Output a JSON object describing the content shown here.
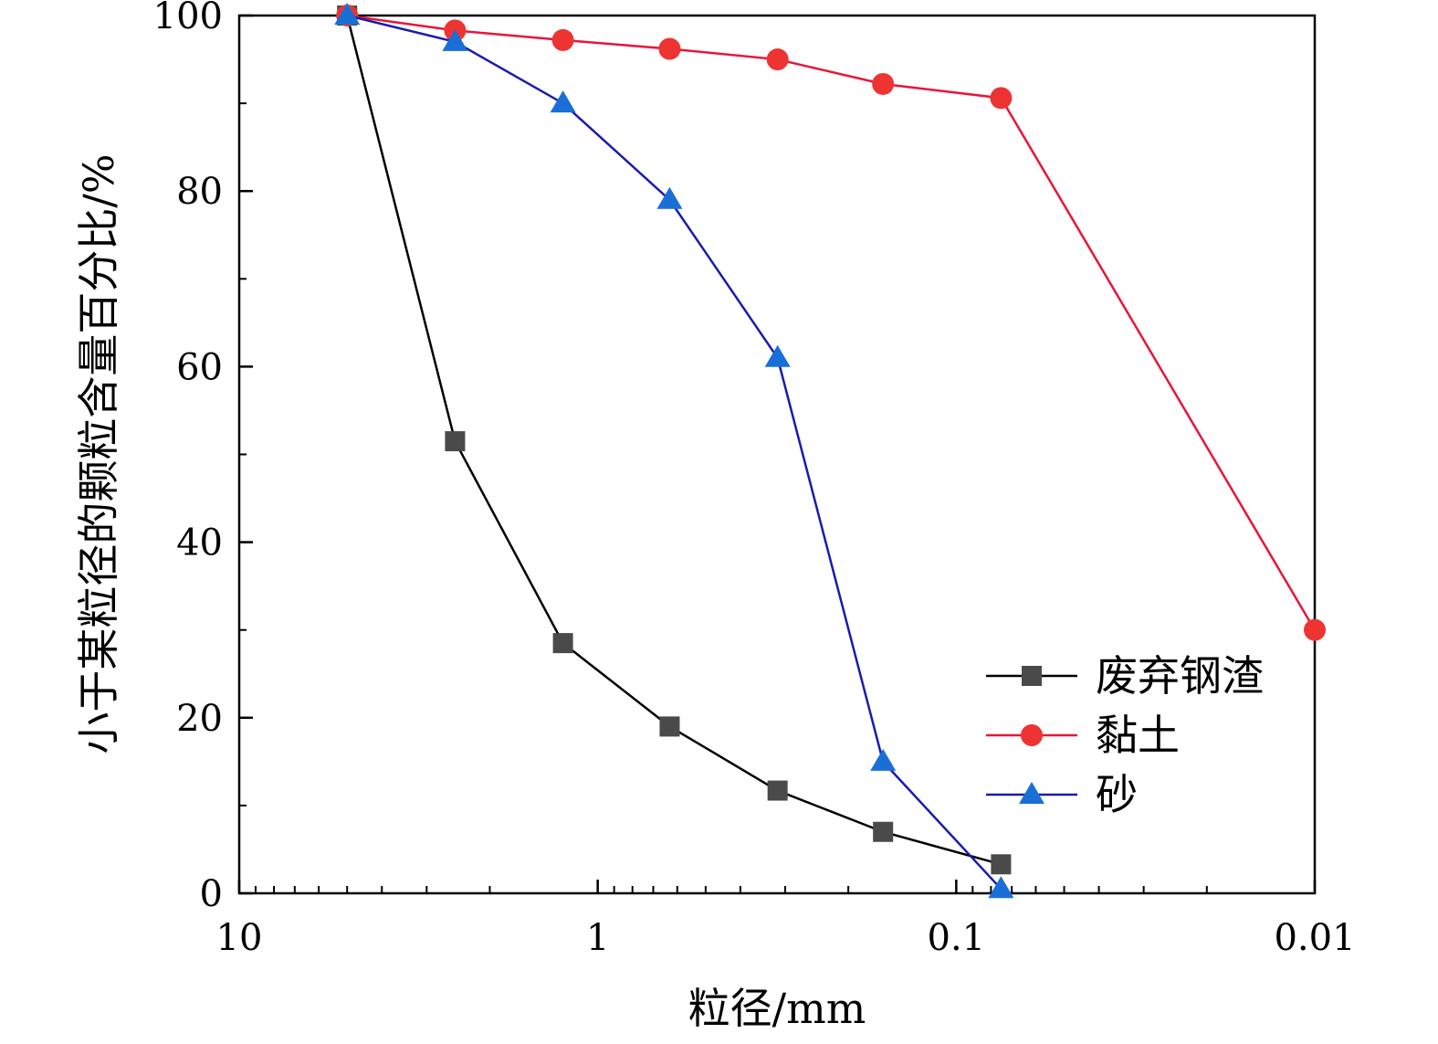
{
  "chart_data": {
    "type": "line",
    "x_scale": "log",
    "x_reversed": true,
    "xlabel": "粒径/mm",
    "ylabel": "小于某粒径的颗粒含量百分比/%",
    "xlim": [
      10,
      0.01
    ],
    "ylim": [
      0,
      100
    ],
    "x_ticks": [
      10,
      1,
      0.1,
      0.01
    ],
    "x_tick_labels": [
      "10",
      "1",
      "0.1",
      "0.01"
    ],
    "y_ticks": [
      0,
      20,
      40,
      60,
      80,
      100
    ],
    "y_tick_labels": [
      "0",
      "20",
      "40",
      "60",
      "80",
      "100"
    ],
    "grid": false,
    "legend_position": "bottom-right",
    "series": [
      {
        "name": "废弃钢渣",
        "color": "#000000",
        "marker": "square",
        "marker_color": "#4a4a4a",
        "x": [
          5,
          2.5,
          1.25,
          0.63,
          0.315,
          0.16,
          0.075
        ],
        "y": [
          100,
          51.5,
          28.5,
          19,
          11.7,
          7,
          3.3
        ]
      },
      {
        "name": "黏土",
        "color": "#e8153a",
        "marker": "circle",
        "marker_color": "#ee3333",
        "x": [
          5,
          2.5,
          1.25,
          0.63,
          0.315,
          0.16,
          0.075,
          0.01
        ],
        "y": [
          100,
          98.3,
          97.2,
          96.2,
          95,
          92.2,
          90.6,
          30
        ]
      },
      {
        "name": "砂",
        "color": "#1a1ab0",
        "marker": "triangle",
        "marker_color": "#1a6fd6",
        "x": [
          5,
          2.5,
          1.25,
          0.63,
          0.315,
          0.16,
          0.075
        ],
        "y": [
          100,
          97,
          90,
          79,
          61,
          15,
          0.5
        ]
      }
    ]
  }
}
